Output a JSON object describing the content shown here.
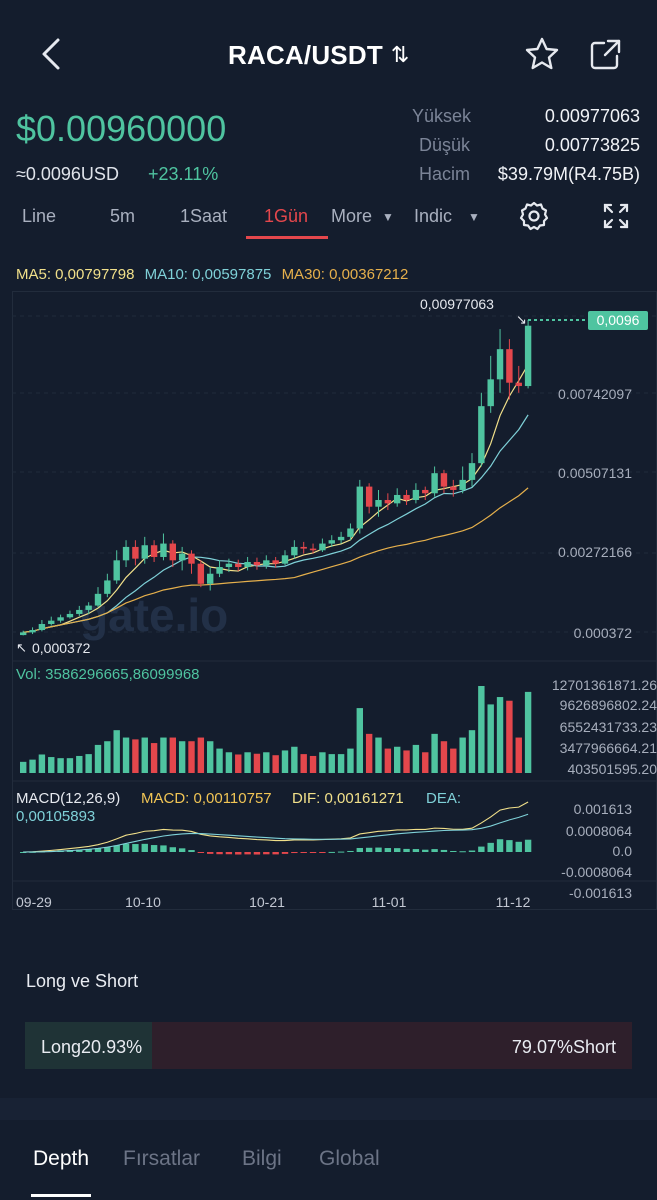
{
  "header": {
    "title": "RACA/USDT",
    "swap_glyph": "⇅",
    "back_icon": "chevron-left-icon",
    "star_icon": "star-icon",
    "share_icon": "share-icon"
  },
  "price": {
    "last": "$0.00960000",
    "usd": "≈0.0096USD",
    "change": "+23.11%"
  },
  "stats": [
    {
      "label": "Yüksek",
      "value": "0.00977063"
    },
    {
      "label": "Düşük",
      "value": "0.00773825"
    },
    {
      "label": "Hacim",
      "value": "$39.79M(R4.75B)"
    }
  ],
  "timeframes": {
    "line": "Line",
    "m5": "5m",
    "h1": "1Saat",
    "d1": "1Gün",
    "more": "More",
    "indic": "Indic"
  },
  "ma": {
    "ma5": "MA5: 0,00797798",
    "ma10": "MA10: 0,00597875",
    "ma30": "MA30: 0,00367212"
  },
  "watermark": "gate.io",
  "chart_data": {
    "type": "candlestick",
    "x_ticks": [
      "09-29",
      "10-10",
      "10-21",
      "11-01",
      "11-12"
    ],
    "price_axis": [
      "0.00977063",
      "0.00742097",
      "0.00507131",
      "0.00272166",
      "0.000372"
    ],
    "price_ylim": [
      0.000372,
      0.00977063
    ],
    "high_label": "0,00977063",
    "low_label": "0,000372",
    "last_price_tag": "0,0096",
    "candles": [
      [
        0.00037,
        0.00045,
        0.0005,
        0.00036
      ],
      [
        0.00045,
        0.00052,
        0.0006,
        0.0004
      ],
      [
        0.00052,
        0.0007,
        0.00082,
        0.00048
      ],
      [
        0.0007,
        0.0008,
        0.00092,
        0.00065
      ],
      [
        0.0008,
        0.0009,
        0.00098,
        0.00074
      ],
      [
        0.0009,
        0.001,
        0.0011,
        0.00086
      ],
      [
        0.001,
        0.00112,
        0.00124,
        0.00094
      ],
      [
        0.00112,
        0.00125,
        0.00135,
        0.001
      ],
      [
        0.00125,
        0.0016,
        0.0018,
        0.0012
      ],
      [
        0.0016,
        0.002,
        0.0022,
        0.0015
      ],
      [
        0.002,
        0.0026,
        0.0029,
        0.0019
      ],
      [
        0.0026,
        0.003,
        0.0032,
        0.0024
      ],
      [
        0.003,
        0.00265,
        0.0032,
        0.00245
      ],
      [
        0.00265,
        0.00305,
        0.0033,
        0.0025
      ],
      [
        0.00305,
        0.0027,
        0.0032,
        0.00255
      ],
      [
        0.0027,
        0.0031,
        0.0034,
        0.0026
      ],
      [
        0.0031,
        0.0026,
        0.0032,
        0.0024
      ],
      [
        0.0026,
        0.0028,
        0.003,
        0.0023
      ],
      [
        0.0028,
        0.0025,
        0.0029,
        0.0022
      ],
      [
        0.0025,
        0.0019,
        0.0026,
        0.0018
      ],
      [
        0.0019,
        0.0022,
        0.0024,
        0.0017
      ],
      [
        0.0022,
        0.0024,
        0.0026,
        0.0021
      ],
      [
        0.0024,
        0.0025,
        0.00265,
        0.00225
      ],
      [
        0.0025,
        0.0024,
        0.00262,
        0.00228
      ],
      [
        0.0024,
        0.00255,
        0.0027,
        0.0023
      ],
      [
        0.00255,
        0.00245,
        0.00268,
        0.00232
      ],
      [
        0.00245,
        0.0026,
        0.00275,
        0.00235
      ],
      [
        0.0026,
        0.0025,
        0.0027,
        0.00238
      ],
      [
        0.0025,
        0.00275,
        0.0029,
        0.00245
      ],
      [
        0.00275,
        0.003,
        0.0032,
        0.00265
      ],
      [
        0.003,
        0.00295,
        0.00315,
        0.0028
      ],
      [
        0.00295,
        0.0029,
        0.0031,
        0.0028
      ],
      [
        0.0029,
        0.0031,
        0.00325,
        0.00285
      ],
      [
        0.0031,
        0.0032,
        0.00335,
        0.003
      ],
      [
        0.0032,
        0.0033,
        0.00345,
        0.0031
      ],
      [
        0.0033,
        0.00355,
        0.0037,
        0.0032
      ],
      [
        0.00355,
        0.0048,
        0.005,
        0.0034
      ],
      [
        0.0048,
        0.0042,
        0.0049,
        0.004
      ],
      [
        0.0042,
        0.0044,
        0.0047,
        0.0039
      ],
      [
        0.0044,
        0.0043,
        0.0046,
        0.0041
      ],
      [
        0.0043,
        0.00455,
        0.00475,
        0.0042
      ],
      [
        0.00455,
        0.0044,
        0.0047,
        0.00425
      ],
      [
        0.0044,
        0.0047,
        0.0049,
        0.0043
      ],
      [
        0.0047,
        0.0046,
        0.0048,
        0.0044
      ],
      [
        0.0046,
        0.0052,
        0.0054,
        0.0045
      ],
      [
        0.0052,
        0.0048,
        0.0053,
        0.0046
      ],
      [
        0.0048,
        0.0047,
        0.005,
        0.0045
      ],
      [
        0.0047,
        0.005,
        0.0054,
        0.0046
      ],
      [
        0.005,
        0.0055,
        0.0058,
        0.0048
      ],
      [
        0.0055,
        0.0072,
        0.0076,
        0.0054
      ],
      [
        0.0072,
        0.008,
        0.0087,
        0.007
      ],
      [
        0.008,
        0.0089,
        0.0095,
        0.0076
      ],
      [
        0.0089,
        0.0079,
        0.0092,
        0.0074
      ],
      [
        0.0079,
        0.0078,
        0.0084,
        0.0076
      ],
      [
        0.0078,
        0.0096,
        0.00977,
        0.00773
      ]
    ],
    "volume_axis": [
      "12701361871.26",
      "9626896802.24",
      "6552431733.23",
      "3477966664.21",
      "403501595.20"
    ],
    "volume_label": "Vol: 3586296665,86099968",
    "volume_ylim": [
      0,
      12701361871.26
    ],
    "macd_axis": [
      "0.001613",
      "0.0008064",
      "0.0",
      "-0.0008064",
      "-0.001613"
    ],
    "macd_ylim": [
      -0.001613,
      0.001613
    ]
  },
  "macd": {
    "title": "MACD(12,26,9)",
    "macd": "MACD: 0,00110757",
    "dif": "DIF: 0,00161271",
    "dea": "DEA:",
    "dea_value": "0,00105893"
  },
  "long_short": {
    "title": "Long ve Short",
    "long_label": "Long20.93%",
    "short_label": "79.07%Short",
    "long_ratio": 0.2093
  },
  "bottom_tabs": [
    "Depth",
    "Fırsatlar",
    "Bilgi",
    "Global"
  ],
  "colors": {
    "background": "#141d2d",
    "up": "#4fc4a0",
    "down": "#e4474c",
    "ma5": "#f1e08a",
    "ma10": "#7fd1d8",
    "ma30": "#e6b04c"
  }
}
